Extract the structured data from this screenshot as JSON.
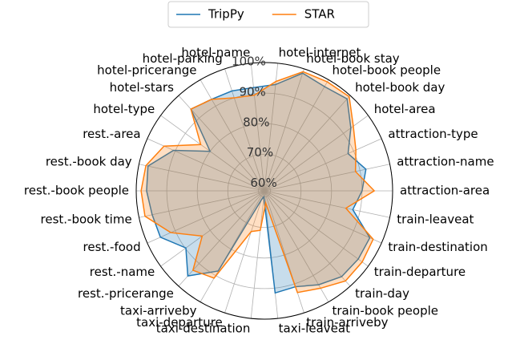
{
  "chart_data": {
    "type": "radar",
    "categories": [
      "attraction-area",
      "attraction-name",
      "attraction-type",
      "hotel-area",
      "hotel-book day",
      "hotel-book people",
      "hotel-book stay",
      "hotel-internet",
      "hotel-name",
      "hotel-parking",
      "hotel-pricerange",
      "hotel-stars",
      "hotel-type",
      "rest.-area",
      "rest.-book day",
      "rest.-book people",
      "rest.-book time",
      "rest.-food",
      "rest.-name",
      "rest.-pricerange",
      "taxi-arriveby",
      "taxi-departure",
      "taxi-destination",
      "taxi-leaveat",
      "train-arriveby",
      "train-book people",
      "train-day",
      "train-departure",
      "train-destination",
      "train-leaveat"
    ],
    "series": [
      {
        "name": "TripPy",
        "color": "#1f77b4",
        "values": [
          90,
          92,
          88,
          93,
          98.5,
          97.4,
          98.5,
          93,
          92,
          92.4,
          92.6,
          94,
          80,
          90.6,
          97,
          96.6,
          95.6,
          95.3,
          89.8,
          95.5,
          88.3,
          61,
          60,
          91.6,
          91,
          93.5,
          95.8,
          96,
          95.8,
          87.6
        ]
      },
      {
        "name": "STAR",
        "color": "#ff7f0e",
        "values": [
          94,
          88.5,
          90.8,
          94,
          99.5,
          99.2,
          99,
          94,
          89.5,
          90,
          92.6,
          94,
          83.8,
          94,
          97.7,
          98.4,
          98,
          91.6,
          83.2,
          93,
          91,
          72,
          71,
          62,
          93,
          94.8,
          97.7,
          97.6,
          97,
          85.3
        ]
      }
    ],
    "ylim": [
      58,
      100
    ],
    "yticks": [
      {
        "value": 60,
        "label": "60%"
      },
      {
        "value": 70,
        "label": "70%"
      },
      {
        "value": 80,
        "label": "80%"
      },
      {
        "value": 90,
        "label": "90%"
      },
      {
        "value": 100,
        "label": "100%"
      }
    ],
    "grid": true
  }
}
